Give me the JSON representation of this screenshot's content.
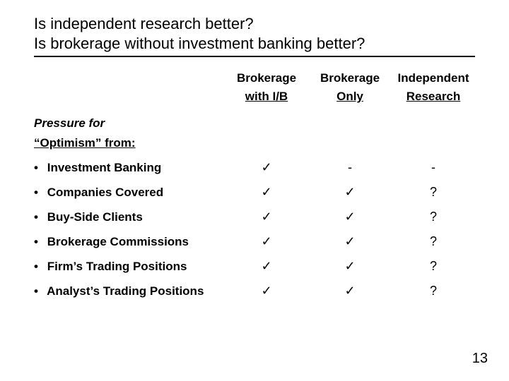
{
  "title": {
    "line1": "Is independent research better?",
    "line2": "Is brokerage without investment banking better?"
  },
  "headers": {
    "col1_top": "Brokerage",
    "col1_bot": "with I/B",
    "col2_top": "Brokerage",
    "col2_bot": "Only",
    "col3_top": "Independent",
    "col3_bot": "Research"
  },
  "section": {
    "label": "Pressure for",
    "sub": "“Optimism” from:"
  },
  "rows": [
    {
      "label": "Investment Banking",
      "c1": "✓",
      "c2": "-",
      "c3": "-"
    },
    {
      "label": "Companies Covered",
      "c1": "✓",
      "c2": "✓",
      "c3": "?"
    },
    {
      "label": "Buy-Side Clients",
      "c1": "✓",
      "c2": "✓",
      "c3": "?"
    },
    {
      "label": "Brokerage Commissions",
      "c1": "✓",
      "c2": "✓",
      "c3": "?"
    },
    {
      "label": "Firm’s Trading Positions",
      "c1": "✓",
      "c2": "✓",
      "c3": "?"
    },
    {
      "label": "Analyst’s Trading Positions",
      "c1": "✓",
      "c2": "✓",
      "c3": "?"
    }
  ],
  "page_number": "13",
  "marks": {
    "bullet": "•"
  }
}
